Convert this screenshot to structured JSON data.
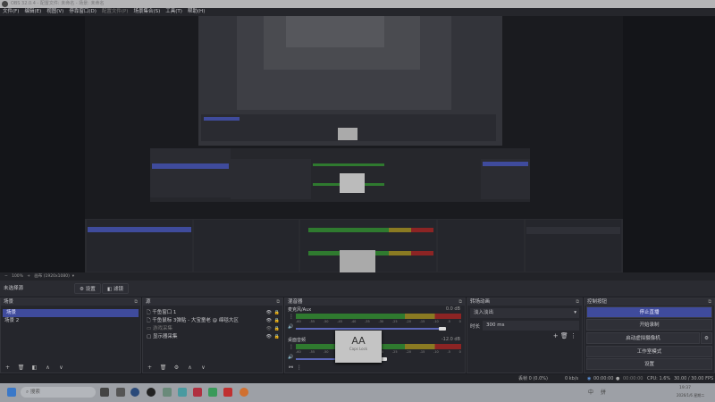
{
  "window": {
    "title": "OBS 32.0.4 - 配置文件: 未命名 - 场景: 未命名"
  },
  "menu": [
    "文件(F)",
    "编辑(E)",
    "视图(V)",
    "停靠窗口(D)",
    "配置文件(P)",
    "场景集合(S)",
    "工具(T)",
    "帮助(H)"
  ],
  "preview_toolbar": {
    "zoom_out": "−",
    "zoom": "100%",
    "zoom_in": "+",
    "canvas": "画布 (1920x1080)",
    "dropdown": "▾"
  },
  "source_toolbar": {
    "no_source": "未选择源",
    "settings": "设置",
    "filters": "滤镜"
  },
  "scenes": {
    "title": "场景",
    "items": [
      "场景",
      "场景 2"
    ],
    "selected": 0
  },
  "sources": {
    "title": "源",
    "items": [
      {
        "icon": "file-icon",
        "label": "千鱼窗口 1"
      },
      {
        "icon": "file-icon",
        "label": "千鱼鼠标 3弹贴 - 大宝童老 @ 绵毯大区"
      },
      {
        "icon": "gamepad-icon",
        "label": "游戏采集",
        "hidden": true
      },
      {
        "icon": "monitor-icon",
        "label": "显示器采集"
      }
    ]
  },
  "mixer": {
    "title": "混音器",
    "channels": [
      {
        "name": "麦克风/Aux",
        "db": "0.0 dB",
        "volume": 1.0
      },
      {
        "name": "桌面音频",
        "db": "-12.0 dB",
        "volume": 0.6
      }
    ],
    "ticks": [
      "-60",
      "-55",
      "-50",
      "-45",
      "-40",
      "-35",
      "-30",
      "-25",
      "-20",
      "-15",
      "-10",
      "-5",
      "0"
    ]
  },
  "transitions": {
    "title": "转场动画",
    "selected": "淡入淡出",
    "duration_label": "时长",
    "duration": "300 ms"
  },
  "controls": {
    "title": "控制按钮",
    "buttons": [
      "停止直播",
      "开始录制",
      "启动虚拟摄像机",
      "工作室模式",
      "设置"
    ]
  },
  "caps_lock": {
    "big": "AA",
    "label": "Caps Lock"
  },
  "status": {
    "dropped": "丢帧 0 (0.0%)",
    "bitrate": "0 kb/s",
    "stream_time": "00:00:00",
    "rec_time": "00:00:00",
    "cpu": "CPU: 1.6%",
    "fps": "30.00 / 30.00 FPS"
  },
  "taskbar": {
    "search": "搜索",
    "ime1": "中",
    "ime2": "拼",
    "time": "19:37",
    "date": "2026/1/6 星期二"
  },
  "colors": {
    "accent": "#3f4b9c",
    "background": "#25262c"
  }
}
